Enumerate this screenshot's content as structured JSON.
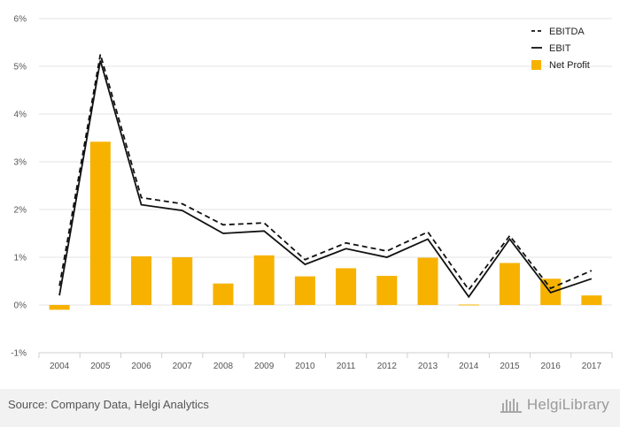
{
  "chart_data": {
    "type": "bar",
    "categories": [
      "2004",
      "2005",
      "2006",
      "2007",
      "2008",
      "2009",
      "2010",
      "2011",
      "2012",
      "2013",
      "2014",
      "2015",
      "2016",
      "2017"
    ],
    "ylim": [
      -1,
      6
    ],
    "y_ticks": [
      "-1%",
      "0%",
      "1%",
      "2%",
      "3%",
      "4%",
      "5%",
      "6%"
    ],
    "grid": "horizontal",
    "legend_position": "top-right",
    "series": [
      {
        "name": "EBITDA",
        "kind": "line",
        "style": "dashed",
        "color": "#111111",
        "values": [
          0.4,
          5.25,
          2.25,
          2.12,
          1.68,
          1.72,
          0.95,
          1.3,
          1.13,
          1.53,
          0.32,
          1.45,
          0.35,
          0.72
        ]
      },
      {
        "name": "EBIT",
        "kind": "line",
        "style": "solid",
        "color": "#111111",
        "values": [
          0.2,
          5.12,
          2.1,
          1.98,
          1.5,
          1.55,
          0.85,
          1.18,
          1.0,
          1.38,
          0.17,
          1.38,
          0.26,
          0.55
        ]
      },
      {
        "name": "Net Profit",
        "kind": "bar",
        "color": "#F7B200",
        "values": [
          -0.1,
          3.42,
          1.02,
          1.0,
          0.45,
          1.04,
          0.6,
          0.77,
          0.61,
          0.99,
          0.01,
          0.88,
          0.55,
          0.2
        ]
      }
    ]
  },
  "footer": {
    "source": "Source: Company Data, Helgi Analytics",
    "brand": "HelgiLibrary"
  }
}
